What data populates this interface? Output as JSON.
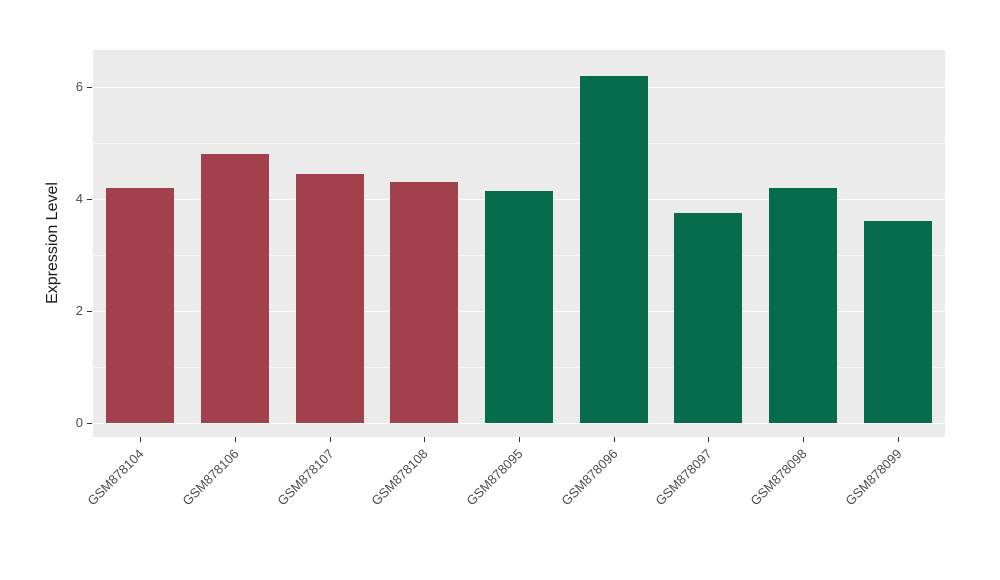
{
  "chart_data": {
    "type": "bar",
    "title": "",
    "ylabel": "Expression Level",
    "xlabel": "",
    "ylim": [
      0,
      6.66
    ],
    "yticks": [
      0,
      2,
      4,
      6
    ],
    "minor_ticks": [
      1,
      3,
      5
    ],
    "categories": [
      "GSM878104",
      "GSM878106",
      "GSM878107",
      "GSM878108",
      "GSM878095",
      "GSM878096",
      "GSM878097",
      "GSM878098",
      "GSM878099"
    ],
    "values": [
      4.2,
      4.8,
      4.45,
      4.3,
      4.15,
      6.2,
      3.75,
      4.2,
      3.6
    ],
    "bar_colors": [
      "#A2414B",
      "#A2414B",
      "#A2414B",
      "#A2414B",
      "#066C4C",
      "#066C4C",
      "#066C4C",
      "#066C4C",
      "#066C4C"
    ],
    "group_colors": {
      "left_group": "#A2414B",
      "right_group": "#066C4C"
    },
    "panel_background": "#EBEBEB",
    "grid": "on",
    "legend": "none"
  }
}
